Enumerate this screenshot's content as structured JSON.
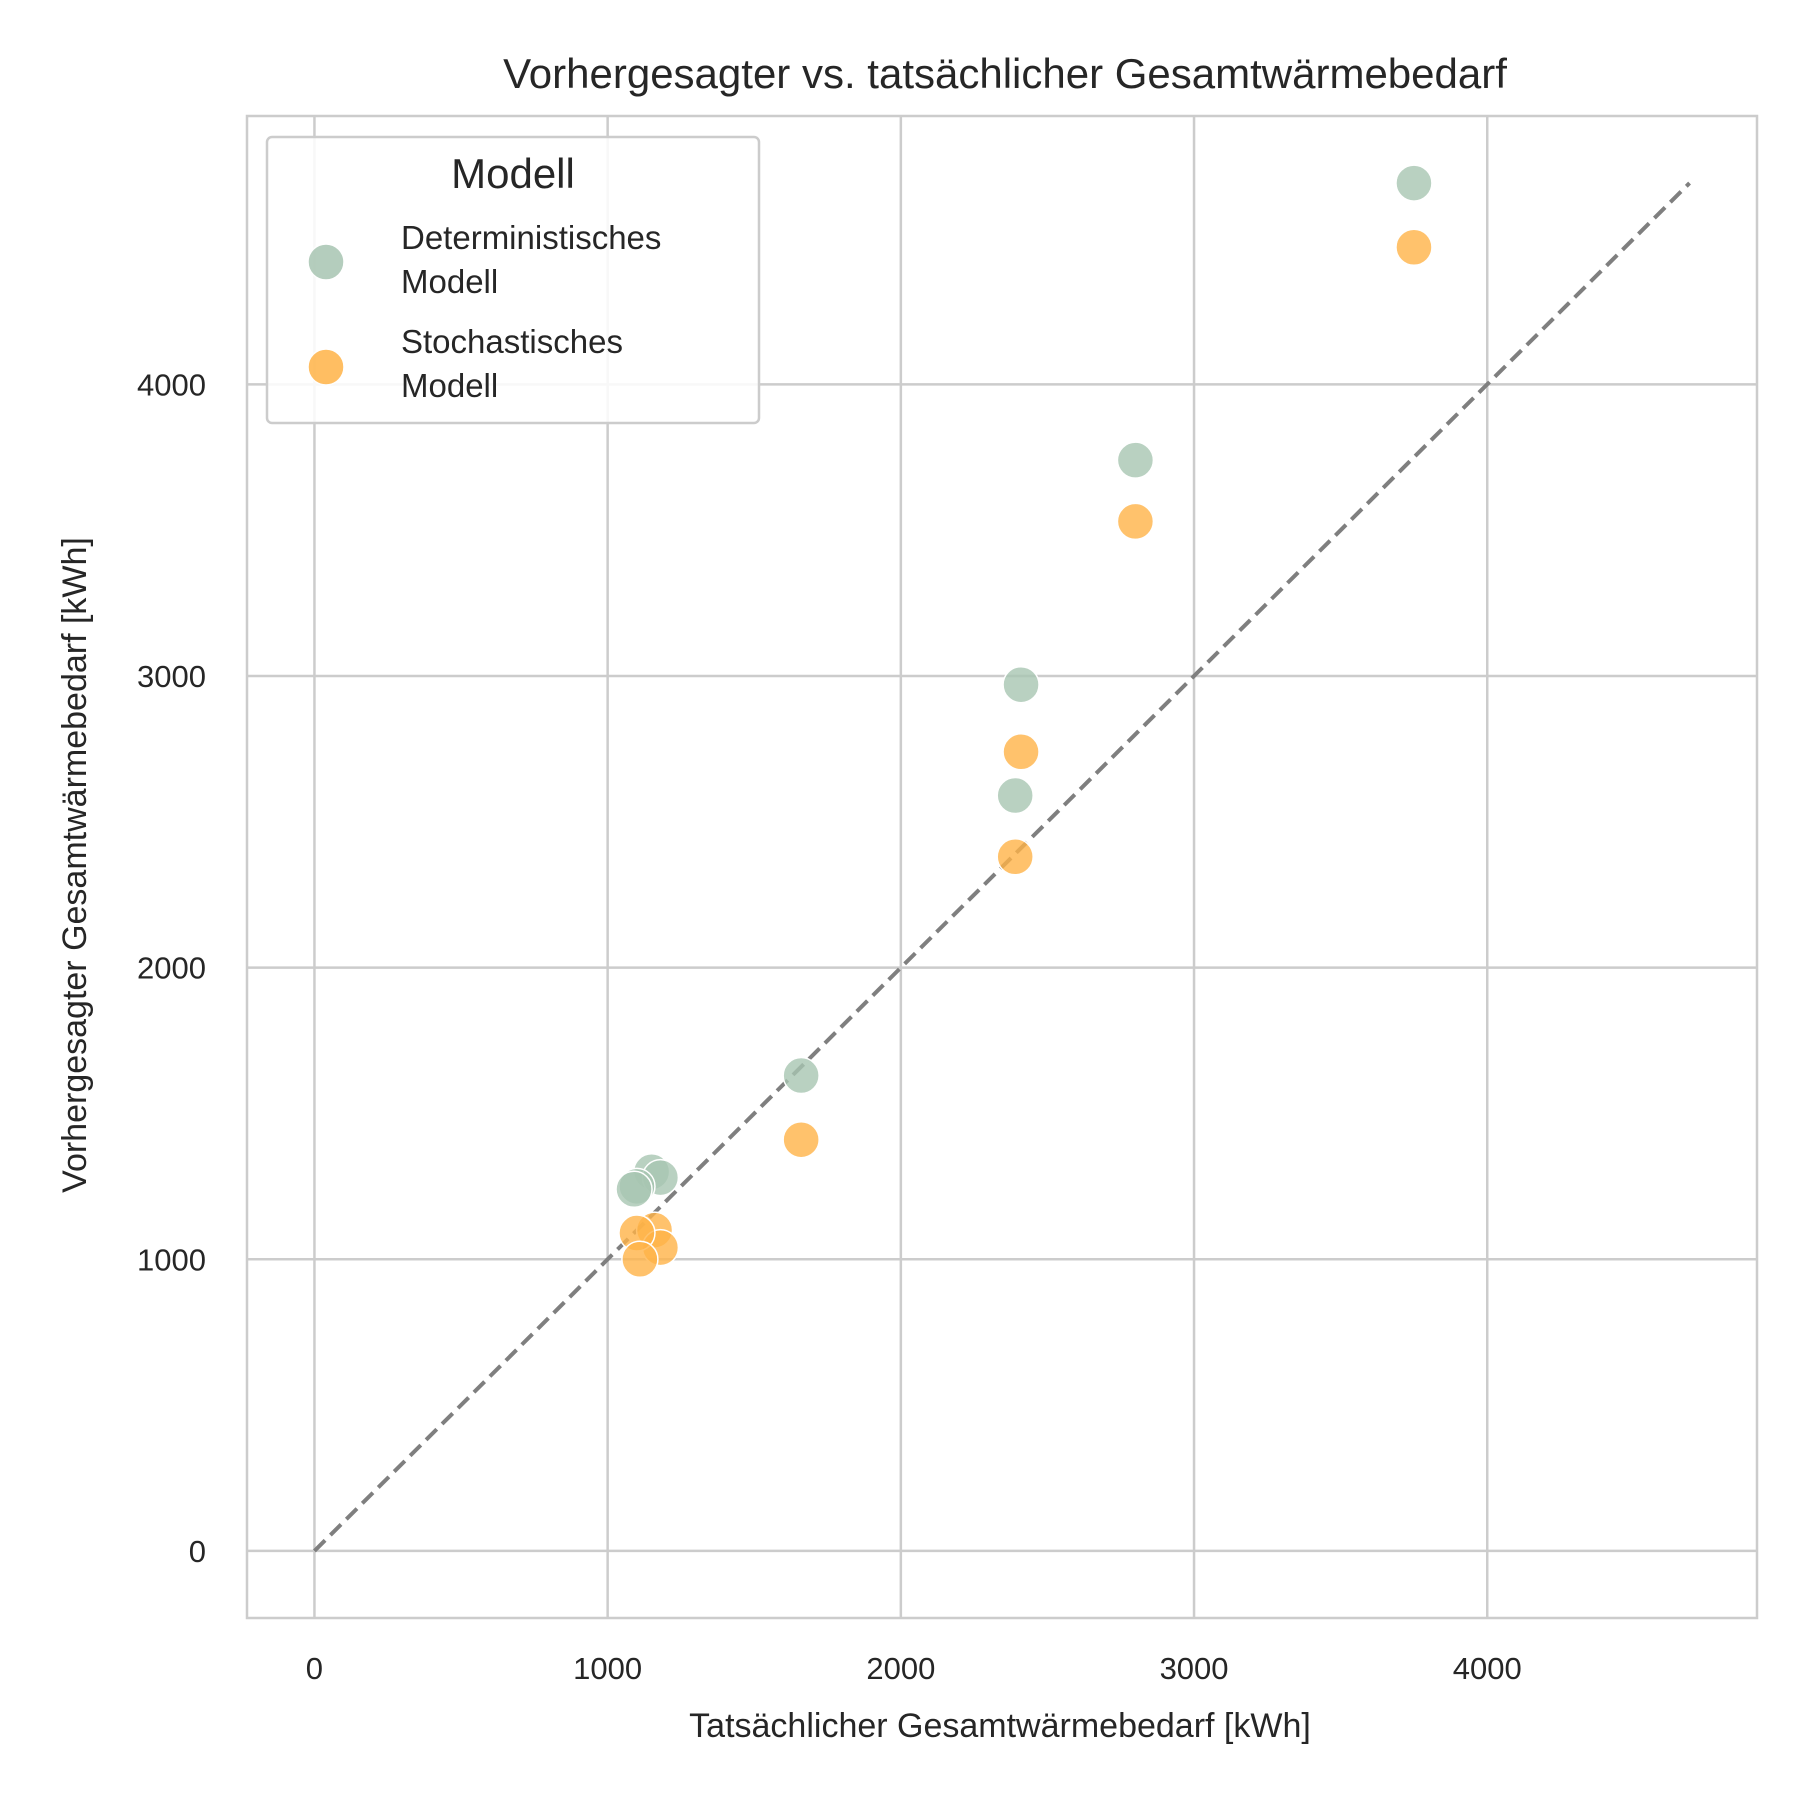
{
  "chart_data": {
    "type": "scatter",
    "title": "Vorhergesagter vs. tatsächlicher Gesamtwärmebedarf",
    "xlabel": "Tatsächlicher Gesamtwärmebedarf [kWh]",
    "ylabel": "Vorhergesagter Gesamtwärmebedarf [kWh]",
    "xlim": [
      -230,
      4920
    ],
    "ylim": [
      -230,
      4920
    ],
    "xticks": [
      0,
      1000,
      2000,
      3000,
      4000
    ],
    "yticks": [
      0,
      1000,
      2000,
      3000,
      4000
    ],
    "grid": true,
    "legend": {
      "title": "Modell",
      "placement": "top-left"
    },
    "reference_line": {
      "type": "identity",
      "from": [
        0,
        0
      ],
      "to": [
        4690,
        4690
      ],
      "style": "dashed",
      "color": "#7f7f7f"
    },
    "series": [
      {
        "name": "Deterministisches Modell",
        "legend_lines": [
          "Deterministisches",
          "Modell"
        ],
        "color": "#a8c5b2",
        "x": [
          3750,
          2800,
          2410,
          2390,
          1660,
          1150,
          1180,
          1100,
          1090
        ],
        "y": [
          4690,
          3740,
          2970,
          2590,
          1630,
          1300,
          1280,
          1250,
          1240
        ]
      },
      {
        "name": "Stochastisches Modell",
        "legend_lines": [
          "Stochastisches",
          "Modell"
        ],
        "color": "#ffb347",
        "x": [
          3750,
          2800,
          2410,
          2390,
          1660,
          1160,
          1180,
          1100,
          1110
        ],
        "y": [
          4470,
          3530,
          2740,
          2380,
          1410,
          1100,
          1040,
          1090,
          1000
        ]
      }
    ]
  }
}
